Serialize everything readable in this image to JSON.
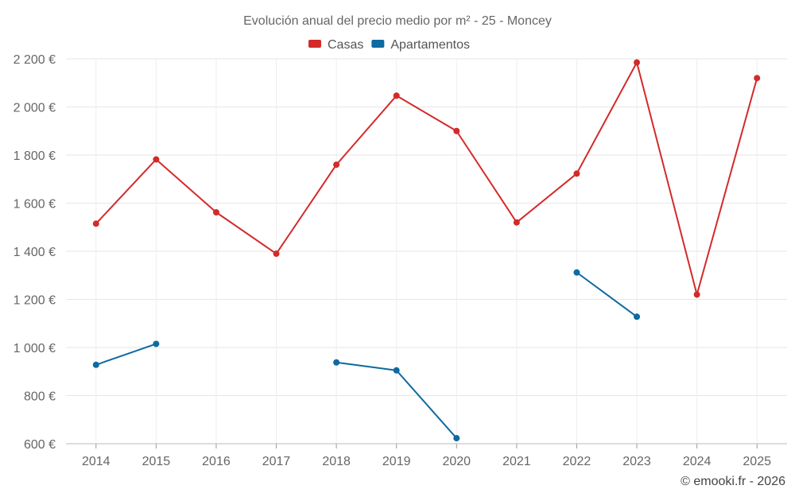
{
  "chart_data": {
    "type": "line",
    "title": "Evolución anual del precio medio por m² - 25 - Moncey",
    "categories": [
      "2014",
      "2015",
      "2016",
      "2017",
      "2018",
      "2019",
      "2020",
      "2021",
      "2022",
      "2023",
      "2024",
      "2025"
    ],
    "ylim": [
      600,
      2200
    ],
    "yticks": [
      600,
      800,
      1000,
      1200,
      1400,
      1600,
      1800,
      2000,
      2200
    ],
    "ytick_labels": [
      "600 €",
      "800 €",
      "1 000 €",
      "1 200 €",
      "1 400 €",
      "1 600 €",
      "1 800 €",
      "2 000 €",
      "2 200 €"
    ],
    "grid": true,
    "legend_position": "top-center",
    "series": [
      {
        "name": "Casas",
        "color": "#d32a2a",
        "values": [
          1515,
          1782,
          1562,
          1390,
          1760,
          2047,
          1900,
          1520,
          1723,
          2185,
          1220,
          2120
        ]
      },
      {
        "name": "Apartamentos",
        "color": "#0e6aa0",
        "values": [
          928,
          1015,
          null,
          null,
          938,
          905,
          623,
          null,
          1312,
          1128,
          null,
          null
        ]
      }
    ],
    "credit": "© emooki.fr - 2026"
  }
}
